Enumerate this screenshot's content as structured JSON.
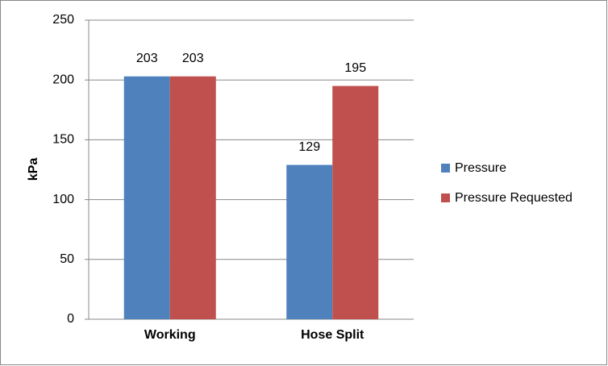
{
  "chart_data": {
    "type": "bar",
    "ylabel": "kPa",
    "categories": [
      "Working",
      "Hose Split"
    ],
    "series": [
      {
        "name": "Pressure",
        "color": "#4f81bd",
        "values": [
          203,
          129
        ]
      },
      {
        "name": "Pressure Requested",
        "color": "#c0504d",
        "values": [
          203,
          195
        ]
      }
    ],
    "ylim": [
      0,
      250
    ],
    "yticks": [
      0,
      50,
      100,
      150,
      200,
      250
    ],
    "grid": true,
    "legend": "right"
  }
}
